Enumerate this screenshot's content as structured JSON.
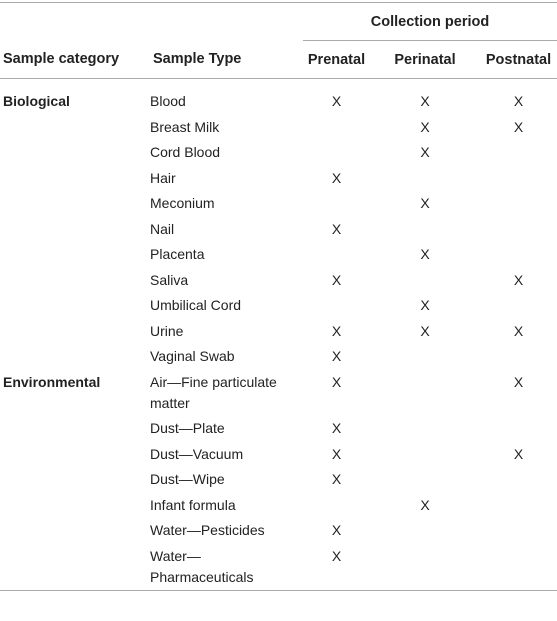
{
  "table": {
    "group_header": "Collection period",
    "columns": [
      "Sample category",
      "Sample Type",
      "Prenatal",
      "Perinatal",
      "Postnatal"
    ],
    "groups": [
      {
        "category": "Biological",
        "rows": [
          {
            "type": "Blood",
            "marks": [
              "X",
              "X",
              "X"
            ]
          },
          {
            "type": "Breast Milk",
            "marks": [
              null,
              "X",
              "X"
            ]
          },
          {
            "type": "Cord Blood",
            "marks": [
              null,
              "X",
              null
            ]
          },
          {
            "type": "Hair",
            "marks": [
              "X",
              null,
              null
            ]
          },
          {
            "type": "Meconium",
            "marks": [
              null,
              "X",
              null
            ]
          },
          {
            "type": "Nail",
            "marks": [
              "X",
              null,
              null
            ]
          },
          {
            "type": "Placenta",
            "marks": [
              null,
              "X",
              null
            ]
          },
          {
            "type": "Saliva",
            "marks": [
              "X",
              null,
              "X"
            ]
          },
          {
            "type": "Umbilical Cord",
            "marks": [
              null,
              "X",
              null
            ]
          },
          {
            "type": "Urine",
            "marks": [
              "X",
              "X",
              "X"
            ]
          },
          {
            "type": "Vaginal Swab",
            "marks": [
              "X",
              null,
              null
            ]
          }
        ]
      },
      {
        "category": "Environmental",
        "rows": [
          {
            "type": "Air—Fine particulate matter",
            "marks": [
              "X",
              null,
              "X"
            ]
          },
          {
            "type": "Dust—Plate",
            "marks": [
              "X",
              null,
              null
            ]
          },
          {
            "type": "Dust—Vacuum",
            "marks": [
              "X",
              null,
              "X"
            ]
          },
          {
            "type": "Dust—Wipe",
            "marks": [
              "X",
              null,
              null
            ]
          },
          {
            "type": "Infant formula",
            "marks": [
              null,
              "X",
              null
            ]
          },
          {
            "type": "Water—Pesticides",
            "marks": [
              "X",
              null,
              null
            ]
          },
          {
            "type": "Water—Pharmaceuticals",
            "marks": [
              "X",
              null,
              null
            ]
          }
        ]
      }
    ]
  }
}
